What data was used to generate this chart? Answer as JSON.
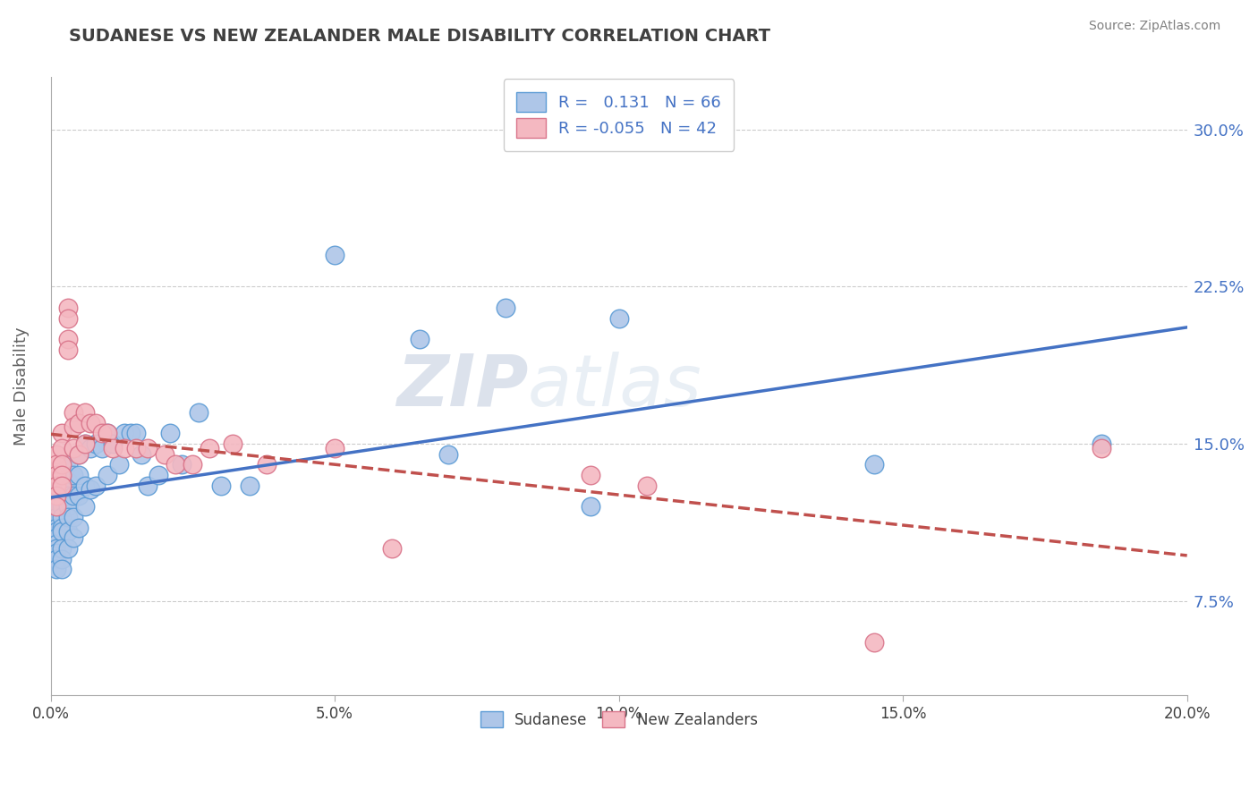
{
  "title": "SUDANESE VS NEW ZEALANDER MALE DISABILITY CORRELATION CHART",
  "source": "Source: ZipAtlas.com",
  "ylabel": "Male Disability",
  "xlim": [
    0.0,
    0.2
  ],
  "ylim": [
    0.03,
    0.325
  ],
  "yticks": [
    0.075,
    0.15,
    0.225,
    0.3
  ],
  "ytick_labels": [
    "7.5%",
    "15.0%",
    "22.5%",
    "30.0%"
  ],
  "xticks": [
    0.0,
    0.05,
    0.1,
    0.15,
    0.2
  ],
  "xtick_labels": [
    "0.0%",
    "5.0%",
    "10.0%",
    "15.0%",
    "20.0%"
  ],
  "sudanese_x": [
    0.001,
    0.001,
    0.001,
    0.001,
    0.001,
    0.001,
    0.001,
    0.001,
    0.001,
    0.001,
    0.001,
    0.002,
    0.002,
    0.002,
    0.002,
    0.002,
    0.002,
    0.002,
    0.002,
    0.002,
    0.003,
    0.003,
    0.003,
    0.003,
    0.003,
    0.003,
    0.003,
    0.004,
    0.004,
    0.004,
    0.004,
    0.005,
    0.005,
    0.005,
    0.005,
    0.006,
    0.006,
    0.006,
    0.007,
    0.007,
    0.008,
    0.008,
    0.009,
    0.01,
    0.01,
    0.011,
    0.012,
    0.013,
    0.014,
    0.015,
    0.016,
    0.017,
    0.019,
    0.021,
    0.023,
    0.026,
    0.03,
    0.035,
    0.05,
    0.065,
    0.07,
    0.08,
    0.095,
    0.1,
    0.145,
    0.185
  ],
  "sudanese_y": [
    0.125,
    0.12,
    0.115,
    0.11,
    0.108,
    0.105,
    0.102,
    0.1,
    0.098,
    0.095,
    0.09,
    0.13,
    0.125,
    0.12,
    0.115,
    0.11,
    0.108,
    0.1,
    0.095,
    0.09,
    0.14,
    0.132,
    0.125,
    0.12,
    0.115,
    0.108,
    0.1,
    0.135,
    0.125,
    0.115,
    0.105,
    0.145,
    0.135,
    0.125,
    0.11,
    0.15,
    0.13,
    0.12,
    0.148,
    0.128,
    0.15,
    0.13,
    0.148,
    0.155,
    0.135,
    0.15,
    0.14,
    0.155,
    0.155,
    0.155,
    0.145,
    0.13,
    0.135,
    0.155,
    0.14,
    0.165,
    0.13,
    0.13,
    0.24,
    0.2,
    0.145,
    0.215,
    0.12,
    0.21,
    0.14,
    0.15
  ],
  "nz_x": [
    0.001,
    0.001,
    0.001,
    0.001,
    0.001,
    0.001,
    0.002,
    0.002,
    0.002,
    0.002,
    0.002,
    0.003,
    0.003,
    0.003,
    0.003,
    0.004,
    0.004,
    0.004,
    0.005,
    0.005,
    0.006,
    0.006,
    0.007,
    0.008,
    0.009,
    0.01,
    0.011,
    0.013,
    0.015,
    0.017,
    0.02,
    0.022,
    0.025,
    0.028,
    0.032,
    0.038,
    0.05,
    0.06,
    0.095,
    0.105,
    0.145,
    0.185
  ],
  "nz_y": [
    0.145,
    0.14,
    0.135,
    0.13,
    0.125,
    0.12,
    0.155,
    0.148,
    0.14,
    0.135,
    0.13,
    0.215,
    0.21,
    0.2,
    0.195,
    0.165,
    0.158,
    0.148,
    0.16,
    0.145,
    0.165,
    0.15,
    0.16,
    0.16,
    0.155,
    0.155,
    0.148,
    0.148,
    0.148,
    0.148,
    0.145,
    0.14,
    0.14,
    0.148,
    0.15,
    0.14,
    0.148,
    0.1,
    0.135,
    0.13,
    0.055,
    0.148
  ],
  "sudanese_color": "#aec6e8",
  "sudanese_edge": "#5b9bd5",
  "nz_color": "#f4b8c1",
  "nz_edge": "#d9748a",
  "trend_blue": "#4472c4",
  "trend_pink": "#c0504d",
  "R_blue": 0.131,
  "N_blue": 66,
  "R_pink": -0.055,
  "N_pink": 42,
  "legend_blue_label": "Sudanese",
  "legend_pink_label": "New Zealanders",
  "watermark_zip": "ZIP",
  "watermark_atlas": "atlas",
  "background_color": "#ffffff",
  "grid_color": "#cccccc",
  "title_color": "#404040",
  "axis_label_color": "#606060",
  "tick_color": "#4472c4",
  "source_color": "#808080"
}
